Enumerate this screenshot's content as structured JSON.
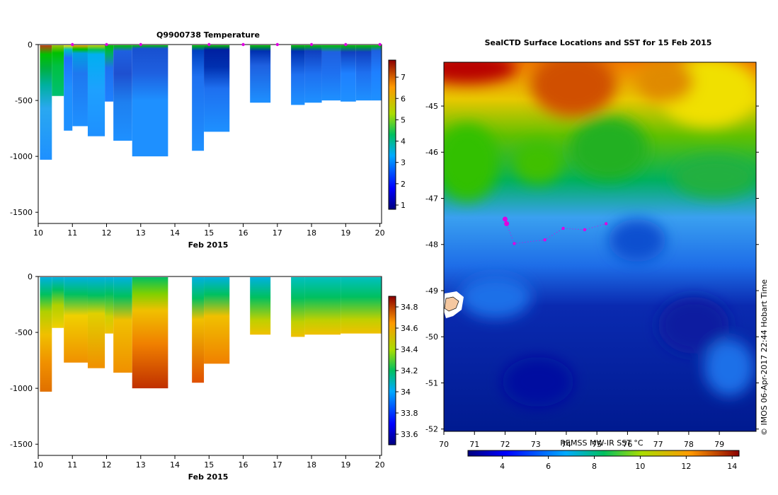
{
  "chart_data": [
    {
      "id": "temperature_section",
      "type": "heatmap",
      "title": "Q9900738  Temperature",
      "xlabel": "Feb 2015",
      "ylabel": "",
      "x_ticks": [
        "10",
        "11",
        "12",
        "13",
        "14",
        "15",
        "16",
        "17",
        "18",
        "19",
        "20"
      ],
      "x_range": [
        10,
        20.05
      ],
      "y_ticks": [
        "0",
        "-500",
        "-1000",
        "-1500"
      ],
      "y_range": [
        -1600,
        0
      ],
      "profile_markers_x": [
        11,
        12,
        13,
        15,
        16,
        17,
        18,
        19,
        20
      ],
      "colorbar": {
        "ticks": [
          "1",
          "2",
          "3",
          "4",
          "5",
          "6",
          "7"
        ],
        "range": [
          0.8,
          7.8
        ]
      },
      "columns": [
        {
          "x0": 10.05,
          "x1": 10.4,
          "depth": 1030,
          "colors": [
            [
              0,
              "#c04010"
            ],
            [
              0.08,
              "#00c000"
            ],
            [
              0.2,
              "#00b040"
            ],
            [
              0.35,
              "#00b0a0"
            ],
            [
              0.55,
              "#2aa8f0"
            ],
            [
              1,
              "#1e90ff"
            ]
          ]
        },
        {
          "x0": 10.4,
          "x1": 10.75,
          "depth": 460,
          "colors": [
            [
              0,
              "#a0c000"
            ],
            [
              0.15,
              "#00c000"
            ],
            [
              0.4,
              "#00c040"
            ],
            [
              1,
              "#00c070"
            ]
          ]
        },
        {
          "x0": 10.75,
          "x1": 11.0,
          "depth": 770,
          "colors": [
            [
              0,
              "#f0e000"
            ],
            [
              0.05,
              "#00c0c0"
            ],
            [
              0.15,
              "#1e70ff"
            ],
            [
              0.5,
              "#1e90ff"
            ],
            [
              1,
              "#1e90ff"
            ]
          ]
        },
        {
          "x0": 11.0,
          "x1": 11.45,
          "depth": 730,
          "colors": [
            [
              0,
              "#f0a000"
            ],
            [
              0.05,
              "#00c000"
            ],
            [
              0.1,
              "#00a0e0"
            ],
            [
              0.35,
              "#1e78f0"
            ],
            [
              1,
              "#1e90ff"
            ]
          ]
        },
        {
          "x0": 11.45,
          "x1": 11.95,
          "depth": 820,
          "colors": [
            [
              0,
              "#c0d000"
            ],
            [
              0.05,
              "#00c060"
            ],
            [
              0.1,
              "#00b0f0"
            ],
            [
              0.5,
              "#1ea0ff"
            ],
            [
              1,
              "#1e90ff"
            ]
          ]
        },
        {
          "x0": 11.95,
          "x1": 12.2,
          "depth": 510,
          "colors": [
            [
              0,
              "#00c000"
            ],
            [
              0.15,
              "#00b060"
            ],
            [
              0.4,
              "#1e70f0"
            ],
            [
              1,
              "#1e80ff"
            ]
          ]
        },
        {
          "x0": 12.2,
          "x1": 12.75,
          "depth": 860,
          "colors": [
            [
              0,
              "#00c000"
            ],
            [
              0.06,
              "#1e60e0"
            ],
            [
              0.3,
              "#1e50d0"
            ],
            [
              0.6,
              "#1e80f0"
            ],
            [
              1,
              "#1e90ff"
            ]
          ]
        },
        {
          "x0": 12.75,
          "x1": 13.8,
          "depth": 1000,
          "colors": [
            [
              0,
              "#00c000"
            ],
            [
              0.03,
              "#1850d0"
            ],
            [
              0.25,
              "#1e60e0"
            ],
            [
              0.5,
              "#1e90ff"
            ],
            [
              1,
              "#1e90ff"
            ]
          ]
        },
        {
          "x0": 14.5,
          "x1": 14.85,
          "depth": 950,
          "colors": [
            [
              0,
              "#00c000"
            ],
            [
              0.05,
              "#0040c0"
            ],
            [
              0.3,
              "#1e70f0"
            ],
            [
              1,
              "#1e90ff"
            ]
          ]
        },
        {
          "x0": 14.85,
          "x1": 15.6,
          "depth": 780,
          "colors": [
            [
              0,
              "#00c000"
            ],
            [
              0.05,
              "#0020a0"
            ],
            [
              0.25,
              "#0030b0"
            ],
            [
              0.5,
              "#1e70f0"
            ],
            [
              1,
              "#1e90ff"
            ]
          ]
        },
        {
          "x0": 16.2,
          "x1": 16.8,
          "depth": 520,
          "colors": [
            [
              0,
              "#00c000"
            ],
            [
              0.1,
              "#0030b0"
            ],
            [
              0.35,
              "#1e60e0"
            ],
            [
              1,
              "#1e90ff"
            ]
          ]
        },
        {
          "x0": 17.4,
          "x1": 17.8,
          "depth": 540,
          "colors": [
            [
              0,
              "#00c000"
            ],
            [
              0.1,
              "#0030b0"
            ],
            [
              0.5,
              "#1e70f0"
            ],
            [
              1,
              "#1e90ff"
            ]
          ]
        },
        {
          "x0": 17.8,
          "x1": 18.3,
          "depth": 520,
          "colors": [
            [
              0,
              "#00c000"
            ],
            [
              0.1,
              "#1040c0"
            ],
            [
              0.5,
              "#1e70f0"
            ],
            [
              1,
              "#1e90ff"
            ]
          ]
        },
        {
          "x0": 18.3,
          "x1": 18.85,
          "depth": 500,
          "colors": [
            [
              0,
              "#00c000"
            ],
            [
              0.12,
              "#1e60e0"
            ],
            [
              0.5,
              "#1e70f0"
            ],
            [
              1,
              "#1e90ff"
            ]
          ]
        },
        {
          "x0": 18.85,
          "x1": 19.3,
          "depth": 510,
          "colors": [
            [
              0,
              "#00c000"
            ],
            [
              0.12,
              "#1040c0"
            ],
            [
              0.5,
              "#1e80ff"
            ],
            [
              1,
              "#1e90ff"
            ]
          ]
        },
        {
          "x0": 19.3,
          "x1": 19.75,
          "depth": 500,
          "colors": [
            [
              0,
              "#00c000"
            ],
            [
              0.12,
              "#1040c0"
            ],
            [
              0.5,
              "#1e70f0"
            ],
            [
              1,
              "#1e90ff"
            ]
          ]
        },
        {
          "x0": 19.75,
          "x1": 20.05,
          "depth": 500,
          "colors": [
            [
              0,
              "#00c000"
            ],
            [
              0.1,
              "#1e60e0"
            ],
            [
              0.5,
              "#1e80ff"
            ],
            [
              1,
              "#1e90ff"
            ]
          ]
        }
      ]
    },
    {
      "id": "salinity_section",
      "type": "heatmap",
      "title": "",
      "xlabel": "Feb 2015",
      "ylabel": "",
      "x_ticks": [
        "10",
        "11",
        "12",
        "13",
        "14",
        "15",
        "16",
        "17",
        "18",
        "19",
        "20"
      ],
      "x_range": [
        10,
        20.05
      ],
      "y_ticks": [
        "0",
        "-500",
        "-1000",
        "-1500"
      ],
      "y_range": [
        -1600,
        0
      ],
      "colorbar": {
        "ticks": [
          "33.6",
          "33.8",
          "34",
          "34.2",
          "34.4",
          "34.6",
          "34.8"
        ],
        "range": [
          33.5,
          34.9
        ]
      },
      "columns": [
        {
          "x0": 10.05,
          "x1": 10.4,
          "depth": 1030,
          "colors": [
            [
              0,
              "#00b0e0"
            ],
            [
              0.15,
              "#00c060"
            ],
            [
              0.3,
              "#b0d000"
            ],
            [
              0.5,
              "#f0c000"
            ],
            [
              0.75,
              "#f09000"
            ],
            [
              1,
              "#e07000"
            ]
          ]
        },
        {
          "x0": 10.4,
          "x1": 10.75,
          "depth": 460,
          "colors": [
            [
              0,
              "#00b0e0"
            ],
            [
              0.25,
              "#00c060"
            ],
            [
              0.55,
              "#b0d000"
            ],
            [
              1,
              "#f0d000"
            ]
          ]
        },
        {
          "x0": 10.75,
          "x1": 11.45,
          "depth": 770,
          "colors": [
            [
              0,
              "#00b0e0"
            ],
            [
              0.2,
              "#00c060"
            ],
            [
              0.45,
              "#f0d000"
            ],
            [
              1,
              "#f09000"
            ]
          ]
        },
        {
          "x0": 11.45,
          "x1": 11.95,
          "depth": 820,
          "colors": [
            [
              0,
              "#00b0e0"
            ],
            [
              0.2,
              "#00c060"
            ],
            [
              0.4,
              "#e0d000"
            ],
            [
              1,
              "#f09000"
            ]
          ]
        },
        {
          "x0": 11.95,
          "x1": 12.2,
          "depth": 510,
          "colors": [
            [
              0,
              "#00b0e0"
            ],
            [
              0.3,
              "#00c060"
            ],
            [
              0.7,
              "#d0d000"
            ],
            [
              1,
              "#f0c000"
            ]
          ]
        },
        {
          "x0": 12.2,
          "x1": 12.75,
          "depth": 860,
          "colors": [
            [
              0,
              "#00b0e0"
            ],
            [
              0.2,
              "#00c060"
            ],
            [
              0.45,
              "#f0c000"
            ],
            [
              1,
              "#f09000"
            ]
          ]
        },
        {
          "x0": 12.75,
          "x1": 13.8,
          "depth": 1000,
          "colors": [
            [
              0,
              "#00c060"
            ],
            [
              0.15,
              "#80d000"
            ],
            [
              0.3,
              "#f0c000"
            ],
            [
              0.6,
              "#f08000"
            ],
            [
              1,
              "#c03000"
            ]
          ]
        },
        {
          "x0": 14.5,
          "x1": 14.85,
          "depth": 950,
          "colors": [
            [
              0,
              "#00b0e0"
            ],
            [
              0.2,
              "#00c060"
            ],
            [
              0.4,
              "#f0c000"
            ],
            [
              1,
              "#e05000"
            ]
          ]
        },
        {
          "x0": 14.85,
          "x1": 15.6,
          "depth": 780,
          "colors": [
            [
              0,
              "#00b0e0"
            ],
            [
              0.2,
              "#00c060"
            ],
            [
              0.45,
              "#f0c000"
            ],
            [
              1,
              "#f08000"
            ]
          ]
        },
        {
          "x0": 16.2,
          "x1": 16.8,
          "depth": 520,
          "colors": [
            [
              0,
              "#00b0e0"
            ],
            [
              0.35,
              "#00c060"
            ],
            [
              0.75,
              "#c0d000"
            ],
            [
              1,
              "#f0c000"
            ]
          ]
        },
        {
          "x0": 17.4,
          "x1": 17.8,
          "depth": 540,
          "colors": [
            [
              0,
              "#00c0c0"
            ],
            [
              0.35,
              "#00c060"
            ],
            [
              0.75,
              "#c0d000"
            ],
            [
              1,
              "#f0c000"
            ]
          ]
        },
        {
          "x0": 17.8,
          "x1": 18.85,
          "depth": 520,
          "colors": [
            [
              0,
              "#00c0c0"
            ],
            [
              0.35,
              "#00c060"
            ],
            [
              0.75,
              "#c0d000"
            ],
            [
              1,
              "#f0c000"
            ]
          ]
        },
        {
          "x0": 18.85,
          "x1": 20.05,
          "depth": 510,
          "colors": [
            [
              0,
              "#00c0c0"
            ],
            [
              0.35,
              "#00c060"
            ],
            [
              0.75,
              "#c0d000"
            ],
            [
              1,
              "#f0c000"
            ]
          ]
        }
      ]
    },
    {
      "id": "sst_map",
      "type": "heatmap",
      "title": "SealCTD Surface Locations and SST for 15 Feb 2015",
      "x_ticks": [
        "70",
        "71",
        "72",
        "73",
        "74",
        "75",
        "76",
        "77",
        "78",
        "79"
      ],
      "x_range": [
        70,
        80.2
      ],
      "y_ticks": [
        "-45",
        "-46",
        "-47",
        "-48",
        "-49",
        "-50",
        "-51",
        "-52"
      ],
      "y_range": [
        -52.05,
        -44.05
      ],
      "colorbar_label": "REMSS MW-IR SST °C",
      "colorbar": {
        "ticks": [
          "4",
          "6",
          "8",
          "10",
          "12",
          "14"
        ],
        "range": [
          2.5,
          14.3
        ]
      },
      "track_lon": [
        72.0,
        72.05,
        72.3,
        73.3,
        73.9,
        74.6,
        75.3
      ],
      "track_lat": [
        -47.45,
        -47.55,
        -47.98,
        -47.9,
        -47.65,
        -47.68,
        -47.55
      ],
      "credit": "© IMOS 06-Apr-2017 22:44 Hobart Time"
    }
  ]
}
